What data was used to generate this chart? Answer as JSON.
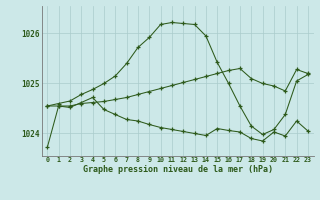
{
  "xlabel": "Graphe pression niveau de la mer (hPa)",
  "background_color": "#cce8e8",
  "grid_color": "#aacccc",
  "line_color": "#2d5a1b",
  "ylim": [
    1023.55,
    1026.55
  ],
  "yticks": [
    1024,
    1025,
    1026
  ],
  "xlim": [
    -0.5,
    23.5
  ],
  "x_labels": [
    "0",
    "1",
    "2",
    "3",
    "4",
    "5",
    "6",
    "7",
    "8",
    "9",
    "10",
    "11",
    "12",
    "13",
    "14",
    "15",
    "16",
    "17",
    "18",
    "19",
    "20",
    "21",
    "22",
    "23"
  ],
  "y_main": [
    1024.55,
    1024.6,
    1024.65,
    1024.78,
    1024.88,
    1025.0,
    1025.15,
    1025.4,
    1025.72,
    1025.92,
    1026.18,
    1026.22,
    1026.2,
    1026.18,
    1025.95,
    1025.42,
    1025.0,
    1024.55,
    1024.15,
    1023.98,
    1024.08,
    1024.38,
    1025.05,
    1025.18
  ],
  "y_low": [
    1023.72,
    1024.55,
    1024.52,
    1024.62,
    1024.72,
    1024.48,
    1024.38,
    1024.28,
    1024.25,
    1024.18,
    1024.12,
    1024.08,
    1024.04,
    1024.0,
    1023.96,
    1024.1,
    1024.06,
    1024.03,
    1023.9,
    1023.85,
    1024.03,
    1023.95,
    1024.25,
    1024.05
  ],
  "y_diag": [
    1024.55,
    1024.55,
    1024.55,
    1024.6,
    1024.62,
    1024.64,
    1024.68,
    1024.72,
    1024.78,
    1024.84,
    1024.9,
    1024.96,
    1025.02,
    1025.08,
    1025.14,
    1025.2,
    1025.26,
    1025.3,
    1025.1,
    1025.0,
    1024.95,
    1024.85,
    1025.28,
    1025.2
  ]
}
